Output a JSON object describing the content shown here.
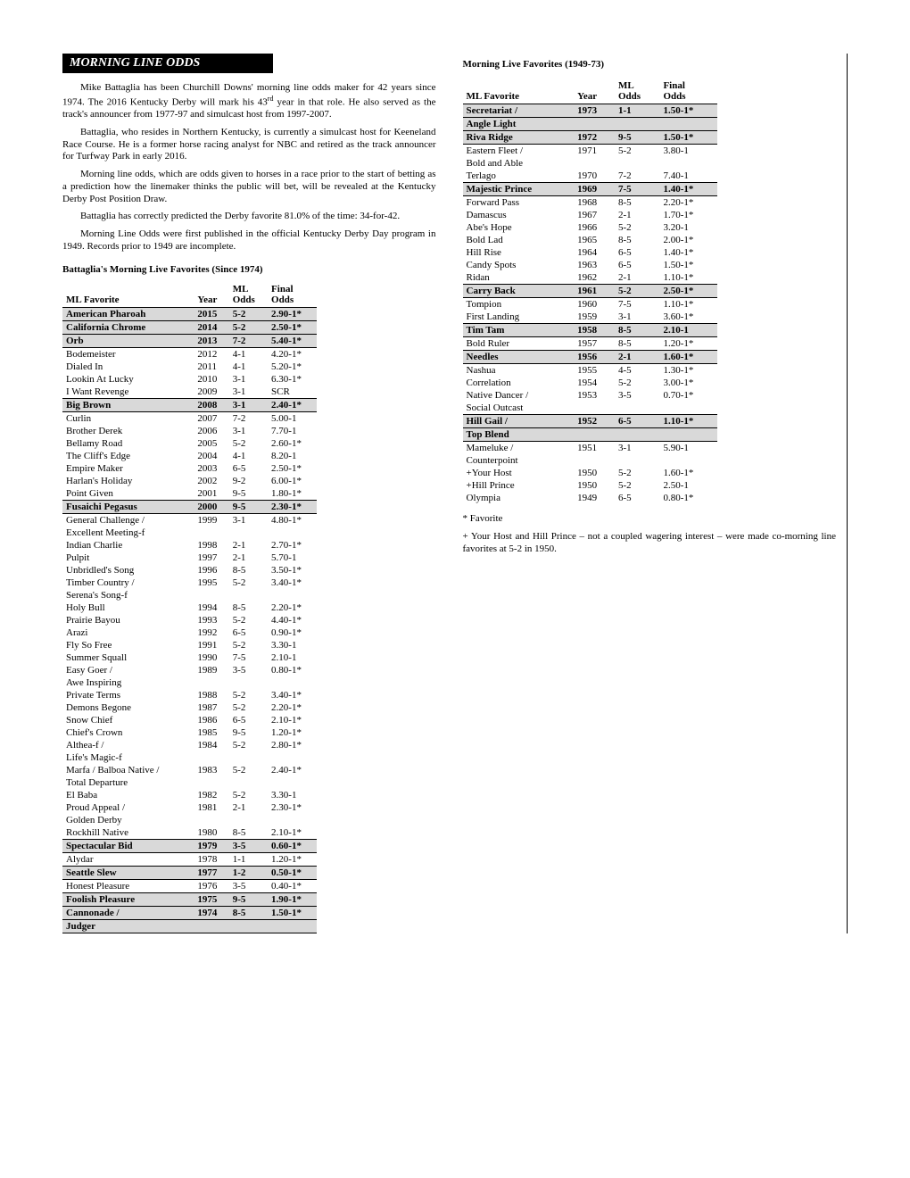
{
  "header": "MORNING LINE ODDS",
  "paragraphs": [
    "Mike Battaglia has been Churchill Downs' morning line odds maker for 42 years since 1974. The 2016 Kentucky Derby will mark his 43rd year in that role. He also served as the track's announcer from 1977-97 and simulcast host from 1997-2007.",
    "Battaglia, who resides in Northern Kentucky, is currently a simulcast host for Keeneland Race Course. He is a former horse racing analyst for NBC and retired as the track announcer for Turfway Park in early 2016.",
    "Morning line odds, which are odds given to horses in a race prior to the start of betting as a prediction how the linemaker thinks the public will bet, will be revealed at the Kentucky Derby Post Position Draw.",
    "Battaglia has correctly predicted the Derby favorite 81.0% of the time: 34-for-42.",
    "Morning Line Odds were first published in the official Kentucky Derby Day program in 1949. Records prior to 1949 are incomplete."
  ],
  "table1_title": "Battaglia's Morning Live Favorites (Since 1974)",
  "table2_title": "Morning Live Favorites (1949-73)",
  "th_favorite": "ML Favorite",
  "th_year": "Year",
  "th_ml": "ML\nOdds",
  "th_final": "Final\nOdds",
  "table1": [
    {
      "hl": true,
      "fav": "American Pharoah",
      "year": "2015",
      "ml": "5-2",
      "final": "2.90-1*"
    },
    {
      "hl": true,
      "fav": "California Chrome",
      "year": "2014",
      "ml": "5-2",
      "final": "2.50-1*"
    },
    {
      "hl": true,
      "fav": "Orb",
      "year": "2013",
      "ml": "7-2",
      "final": "5.40-1*"
    },
    {
      "fav": "Bodemeister",
      "year": "2012",
      "ml": "4-1",
      "final": "4.20-1*"
    },
    {
      "fav": "Dialed In",
      "year": "2011",
      "ml": "4-1",
      "final": "5.20-1*"
    },
    {
      "fav": "Lookin At Lucky",
      "year": "2010",
      "ml": "3-1",
      "final": "6.30-1*"
    },
    {
      "fav": "I Want Revenge",
      "year": "2009",
      "ml": "3-1",
      "final": "SCR"
    },
    {
      "hl": true,
      "fav": "Big Brown",
      "year": "2008",
      "ml": "3-1",
      "final": "2.40-1*"
    },
    {
      "fav": "Curlin",
      "year": "2007",
      "ml": "7-2",
      "final": "5.00-1"
    },
    {
      "fav": "Brother Derek",
      "year": "2006",
      "ml": "3-1",
      "final": "7.70-1"
    },
    {
      "fav": "Bellamy Road",
      "year": "2005",
      "ml": "5-2",
      "final": "2.60-1*"
    },
    {
      "fav": "The Cliff's Edge",
      "year": "2004",
      "ml": "4-1",
      "final": "8.20-1"
    },
    {
      "fav": "Empire Maker",
      "year": "2003",
      "ml": "6-5",
      "final": "2.50-1*"
    },
    {
      "fav": "Harlan's Holiday",
      "year": "2002",
      "ml": "9-2",
      "final": "6.00-1*"
    },
    {
      "fav": "Point Given",
      "year": "2001",
      "ml": "9-5",
      "final": "1.80-1*"
    },
    {
      "hl": true,
      "fav": "Fusaichi Pegasus",
      "year": "2000",
      "ml": "9-5",
      "final": "2.30-1*"
    },
    {
      "fav": "General Challenge /",
      "sub": "Excellent Meeting-f",
      "year": "1999",
      "ml": "3-1",
      "final": "4.80-1*"
    },
    {
      "fav": "Indian Charlie",
      "year": "1998",
      "ml": "2-1",
      "final": "2.70-1*"
    },
    {
      "fav": "Pulpit",
      "year": "1997",
      "ml": "2-1",
      "final": "5.70-1"
    },
    {
      "fav": "Unbridled's Song",
      "year": "1996",
      "ml": "8-5",
      "final": "3.50-1*"
    },
    {
      "fav": "Timber Country /",
      "sub": "Serena's Song-f",
      "year": "1995",
      "ml": "5-2",
      "final": "3.40-1*"
    },
    {
      "fav": "Holy Bull",
      "year": "1994",
      "ml": "8-5",
      "final": "2.20-1*"
    },
    {
      "fav": "Prairie Bayou",
      "year": "1993",
      "ml": "5-2",
      "final": "4.40-1*"
    },
    {
      "fav": "Arazi",
      "year": "1992",
      "ml": "6-5",
      "final": "0.90-1*"
    },
    {
      "fav": "Fly So Free",
      "year": "1991",
      "ml": "5-2",
      "final": "3.30-1"
    },
    {
      "fav": "Summer Squall",
      "year": "1990",
      "ml": "7-5",
      "final": "2.10-1"
    },
    {
      "fav": "Easy Goer /",
      "sub": "Awe Inspiring",
      "year": "1989",
      "ml": "3-5",
      "final": "0.80-1*"
    },
    {
      "fav": "Private Terms",
      "year": "1988",
      "ml": "5-2",
      "final": "3.40-1*"
    },
    {
      "fav": "Demons Begone",
      "year": "1987",
      "ml": "5-2",
      "final": "2.20-1*"
    },
    {
      "fav": "Snow Chief",
      "year": "1986",
      "ml": "6-5",
      "final": "2.10-1*"
    },
    {
      "fav": "Chief's Crown",
      "year": "1985",
      "ml": "9-5",
      "final": "1.20-1*"
    },
    {
      "fav": "Althea-f /",
      "sub": "Life's Magic-f",
      "year": "1984",
      "ml": "5-2",
      "final": "2.80-1*"
    },
    {
      "fav": "Marfa / Balboa Native /",
      "sub": "Total Departure",
      "year": "1983",
      "ml": "5-2",
      "final": "2.40-1*"
    },
    {
      "fav": "El Baba",
      "year": "1982",
      "ml": "5-2",
      "final": "3.30-1"
    },
    {
      "fav": "Proud Appeal /",
      "sub": "Golden Derby",
      "year": "1981",
      "ml": "2-1",
      "final": "2.30-1*"
    },
    {
      "fav": "Rockhill Native",
      "year": "1980",
      "ml": "8-5",
      "final": "2.10-1*"
    },
    {
      "hl": true,
      "fav": "Spectacular Bid",
      "year": "1979",
      "ml": "3-5",
      "final": "0.60-1*"
    },
    {
      "fav": "Alydar",
      "year": "1978",
      "ml": "1-1",
      "final": "1.20-1*",
      "rule": true
    },
    {
      "hl": true,
      "fav": "Seattle Slew",
      "year": "1977",
      "ml": "1-2",
      "final": "0.50-1*"
    },
    {
      "fav": "Honest Pleasure",
      "year": "1976",
      "ml": "3-5",
      "final": "0.40-1*",
      "rule": true
    },
    {
      "hl": true,
      "fav": "Foolish Pleasure",
      "year": "1975",
      "ml": "9-5",
      "final": "1.90-1*"
    },
    {
      "hl": true,
      "fav": "Cannonade /",
      "sub": "Judger",
      "year": "1974",
      "ml": "8-5",
      "final": "1.50-1*"
    }
  ],
  "table2": [
    {
      "hl": true,
      "fav": "Secretariat /",
      "sub": "Angle Light",
      "year": "1973",
      "ml": "1-1",
      "final": "1.50-1*"
    },
    {
      "hl": true,
      "fav": "Riva Ridge",
      "year": "1972",
      "ml": "9-5",
      "final": "1.50-1*"
    },
    {
      "fav": "Eastern Fleet /",
      "sub": "Bold and Able",
      "year": "1971",
      "ml": "5-2",
      "final": "3.80-1"
    },
    {
      "fav": "Terlago",
      "year": "1970",
      "ml": "7-2",
      "final": "7.40-1"
    },
    {
      "hl": true,
      "fav": "Majestic Prince",
      "year": "1969",
      "ml": "7-5",
      "final": "1.40-1*"
    },
    {
      "fav": "Forward Pass",
      "year": "1968",
      "ml": "8-5",
      "final": "2.20-1*"
    },
    {
      "fav": "Damascus",
      "year": "1967",
      "ml": "2-1",
      "final": "1.70-1*"
    },
    {
      "fav": "Abe's Hope",
      "year": "1966",
      "ml": "5-2",
      "final": "3.20-1"
    },
    {
      "fav": "Bold Lad",
      "year": "1965",
      "ml": "8-5",
      "final": "2.00-1*"
    },
    {
      "fav": "Hill Rise",
      "year": "1964",
      "ml": "6-5",
      "final": "1.40-1*"
    },
    {
      "fav": "Candy Spots",
      "year": "1963",
      "ml": "6-5",
      "final": "1.50-1*"
    },
    {
      "fav": "Ridan",
      "year": "1962",
      "ml": "2-1",
      "final": "1.10-1*"
    },
    {
      "hl": true,
      "fav": "Carry Back",
      "year": "1961",
      "ml": "5-2",
      "final": "2.50-1*"
    },
    {
      "fav": "Tompion",
      "year": "1960",
      "ml": "7-5",
      "final": "1.10-1*"
    },
    {
      "fav": "First Landing",
      "year": "1959",
      "ml": "3-1",
      "final": "3.60-1*"
    },
    {
      "hl": true,
      "fav": "Tim Tam",
      "year": "1958",
      "ml": "8-5",
      "final": "2.10-1"
    },
    {
      "fav": "Bold Ruler",
      "year": "1957",
      "ml": "8-5",
      "final": "1.20-1*",
      "rule": true
    },
    {
      "hl": true,
      "fav": "Needles",
      "year": "1956",
      "ml": "2-1",
      "final": "1.60-1*"
    },
    {
      "fav": "Nashua",
      "year": "1955",
      "ml": "4-5",
      "final": "1.30-1*"
    },
    {
      "fav": "Correlation",
      "year": "1954",
      "ml": "5-2",
      "final": "3.00-1*"
    },
    {
      "fav": "Native Dancer /",
      "sub": "Social Outcast",
      "year": "1953",
      "ml": "3-5",
      "final": "0.70-1*"
    },
    {
      "hl": true,
      "fav": "Hill Gail /",
      "sub": "Top Blend",
      "year": "1952",
      "ml": "6-5",
      "final": "1.10-1*"
    },
    {
      "fav": "Mameluke /",
      "sub": "Counterpoint",
      "year": "1951",
      "ml": "3-1",
      "final": "5.90-1"
    },
    {
      "fav": "+Your Host",
      "year": "1950",
      "ml": "5-2",
      "final": "1.60-1*"
    },
    {
      "fav": "+Hill Prince",
      "year": "1950",
      "ml": "5-2",
      "final": "2.50-1"
    },
    {
      "fav": "Olympia",
      "year": "1949",
      "ml": "6-5",
      "final": "0.80-1*"
    }
  ],
  "footnote_star": "* Favorite",
  "footnote_plus": "+ Your Host and Hill Prince – not a coupled wagering interest – were made co-morning line favorites at 5-2 in 1950."
}
